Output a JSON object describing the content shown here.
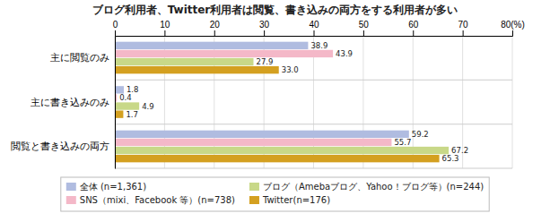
{
  "chart_data": {
    "type": "bar",
    "orientation": "horizontal",
    "title": "ブログ利用者、Twitter利用者は閲覧、書き込みの両方をする利用者が多い",
    "categories": [
      "主に閲覧のみ",
      "主に書き込みのみ",
      "閲覧と書き込みの両方"
    ],
    "series": [
      {
        "name": "全体 (n=1,361)",
        "color": "#b0bce0",
        "values": [
          38.9,
          1.8,
          59.2
        ]
      },
      {
        "name": "SNS（mixi、Facebook 等）(n=738)",
        "color": "#f4b8c8",
        "values": [
          43.9,
          0.4,
          55.7
        ]
      },
      {
        "name": "ブログ（Amebaブログ、Yahoo！ブログ等）(n=244)",
        "color": "#c8d888",
        "values": [
          27.9,
          4.9,
          67.2
        ]
      },
      {
        "name": "Twitter(n=176)",
        "color": "#d4a020",
        "values": [
          33.0,
          1.7,
          65.3
        ],
        "value_labels": [
          "33.0",
          "1.7",
          "65.3"
        ]
      }
    ],
    "xlim": [
      0,
      80
    ],
    "xticks": [
      0,
      10,
      20,
      30,
      40,
      50,
      60,
      70,
      {
        "value": 80,
        "label": "80(%)"
      }
    ],
    "grid": true,
    "data_labels": true,
    "legend": "bottom"
  }
}
